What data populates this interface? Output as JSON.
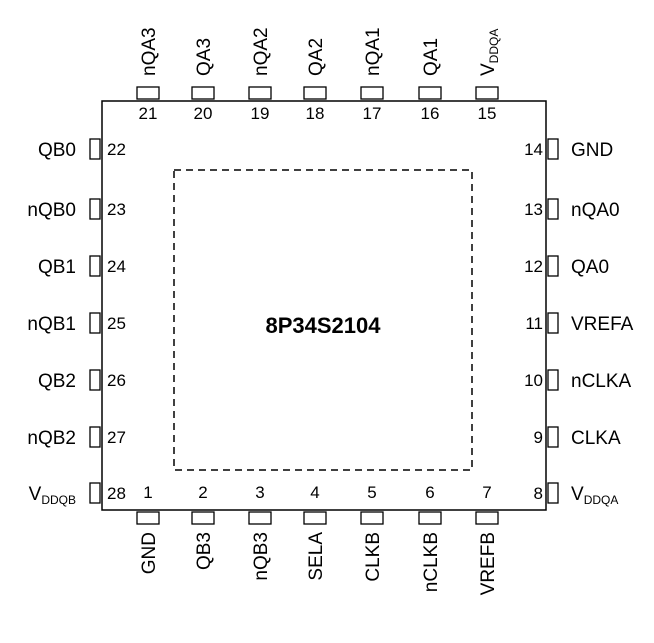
{
  "chip": {
    "name": "8P34S2104"
  },
  "pins": [
    {
      "num": "1",
      "name": "GND"
    },
    {
      "num": "2",
      "name": "QB3"
    },
    {
      "num": "3",
      "name": "nQB3"
    },
    {
      "num": "4",
      "name": "SELA"
    },
    {
      "num": "5",
      "name": "CLKB"
    },
    {
      "num": "6",
      "name": "nCLKB"
    },
    {
      "num": "7",
      "name": "VREFB"
    },
    {
      "num": "8",
      "name": "V",
      "sub": "DDQA"
    },
    {
      "num": "9",
      "name": "CLKA"
    },
    {
      "num": "10",
      "name": "nCLKA"
    },
    {
      "num": "11",
      "name": "VREFA"
    },
    {
      "num": "12",
      "name": "QA0"
    },
    {
      "num": "13",
      "name": "nQA0"
    },
    {
      "num": "14",
      "name": "GND"
    },
    {
      "num": "15",
      "name": "V",
      "sub": "DDQA"
    },
    {
      "num": "16",
      "name": "QA1"
    },
    {
      "num": "17",
      "name": "nQA1"
    },
    {
      "num": "18",
      "name": "QA2"
    },
    {
      "num": "19",
      "name": "nQA2"
    },
    {
      "num": "20",
      "name": "QA3"
    },
    {
      "num": "21",
      "name": "nQA3"
    },
    {
      "num": "22",
      "name": "QB0"
    },
    {
      "num": "23",
      "name": "nQB0"
    },
    {
      "num": "24",
      "name": "QB1"
    },
    {
      "num": "25",
      "name": "nQB1"
    },
    {
      "num": "26",
      "name": "QB2"
    },
    {
      "num": "27",
      "name": "nQB2"
    },
    {
      "num": "28",
      "name": "V",
      "sub": "DDQB"
    }
  ]
}
